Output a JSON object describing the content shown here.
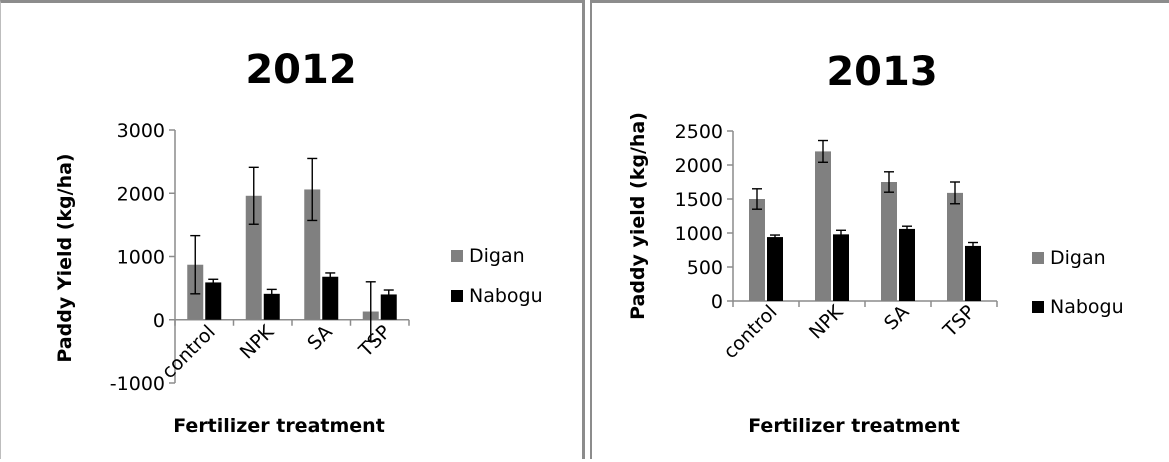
{
  "chart_data": [
    {
      "type": "bar",
      "title": "2012",
      "xlabel": "Fertilizer treatment",
      "ylabel": "Paddy Yield (kg/ha)",
      "categories": [
        "control",
        "NPK",
        "SA",
        "TSP"
      ],
      "ylim": [
        -1000,
        3000
      ],
      "yticks": [
        3000,
        2000,
        1000,
        0,
        -1000
      ],
      "grid": false,
      "legend_position": "right",
      "series": [
        {
          "name": "Digan",
          "color": "#808080",
          "values": [
            870,
            1960,
            2060,
            130
          ],
          "errors": [
            460,
            450,
            490,
            470
          ]
        },
        {
          "name": "Nabogu",
          "color": "#000000",
          "values": [
            590,
            410,
            680,
            400
          ],
          "errors": [
            50,
            70,
            60,
            70
          ]
        }
      ]
    },
    {
      "type": "bar",
      "title": "2013",
      "xlabel": "Fertilizer treatment",
      "ylabel": "Paddy yield (kg/ha)",
      "categories": [
        "control",
        "NPK",
        "SA",
        "TSP"
      ],
      "ylim": [
        0,
        2500
      ],
      "yticks": [
        2500,
        2000,
        1500,
        1000,
        500,
        0
      ],
      "grid": false,
      "legend_position": "right",
      "series": [
        {
          "name": "Digan",
          "color": "#808080",
          "values": [
            1500,
            2200,
            1750,
            1590
          ],
          "errors": [
            150,
            160,
            150,
            160
          ]
        },
        {
          "name": "Nabogu",
          "color": "#000000",
          "values": [
            940,
            980,
            1060,
            810
          ],
          "errors": [
            30,
            60,
            40,
            50
          ]
        }
      ]
    }
  ]
}
